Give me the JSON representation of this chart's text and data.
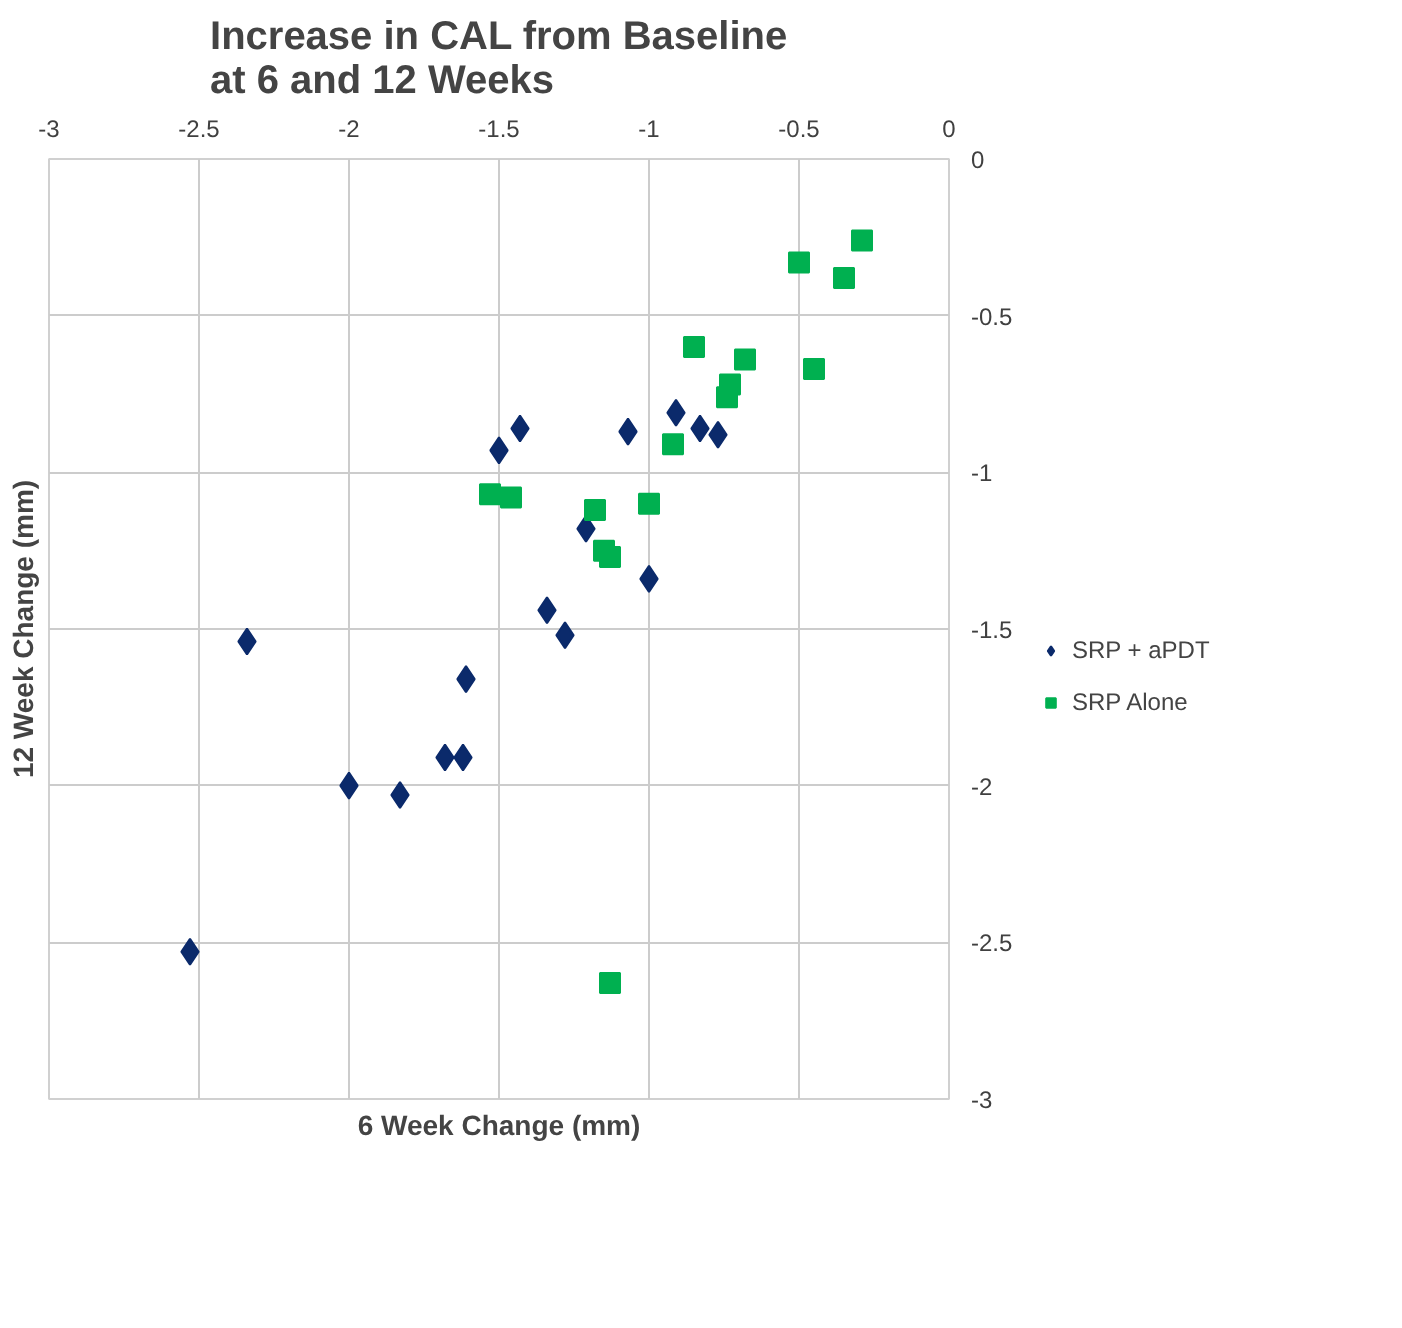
{
  "chart_data": {
    "type": "scatter",
    "title": "Increase in CAL from Baseline\nat 6 and 12 Weeks",
    "xlabel": "6 Week Change (mm)",
    "ylabel": "12 Week Change (mm)",
    "xlim": [
      -3,
      0
    ],
    "ylim": [
      -3,
      0
    ],
    "xticks": [
      -3,
      -2.5,
      -2,
      -1.5,
      -1,
      -0.5,
      0
    ],
    "yticks": [
      -3,
      -2.5,
      -2,
      -1.5,
      -1,
      -0.5,
      0
    ],
    "grid": true,
    "legend": "right",
    "series": [
      {
        "name": "SRP + aPDT",
        "color": "#0b2a6b",
        "marker": "diamond",
        "x": [
          -0.91,
          -0.83,
          -0.77,
          -1.07,
          -1.43,
          -1.5,
          -1.21,
          -1.0,
          -1.34,
          -1.28,
          -2.34,
          -1.61,
          -1.68,
          -1.62,
          -2.0,
          -1.83,
          -2.53
        ],
        "values": [
          -0.81,
          -0.86,
          -0.88,
          -0.87,
          -0.86,
          -0.93,
          -1.18,
          -1.34,
          -1.44,
          -1.52,
          -1.54,
          -1.66,
          -1.91,
          -1.91,
          -2.0,
          -2.03,
          -2.53
        ]
      },
      {
        "name": "SRP Alone",
        "color": "#00b050",
        "marker": "square",
        "x": [
          -0.29,
          -0.5,
          -0.35,
          -0.85,
          -0.68,
          -0.45,
          -0.73,
          -0.74,
          -0.92,
          -1.53,
          -1.46,
          -1.18,
          -1.0,
          -1.15,
          -1.13,
          -1.13
        ],
        "values": [
          -0.26,
          -0.33,
          -0.38,
          -0.6,
          -0.64,
          -0.67,
          -0.72,
          -0.76,
          -0.91,
          -1.07,
          -1.08,
          -1.12,
          -1.1,
          -1.25,
          -1.27,
          -2.63
        ]
      }
    ]
  }
}
